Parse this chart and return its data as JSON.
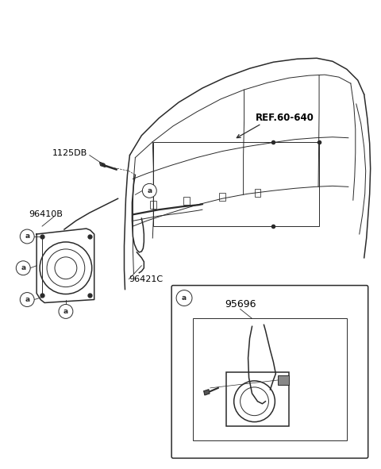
{
  "bg_color": "#ffffff",
  "line_color": "#2a2a2a",
  "label_color": "#000000",
  "parts": {
    "ref_label": "REF.60-640",
    "part1": "1125DB",
    "part2": "96410B",
    "part3": "96421C",
    "part4": "95696",
    "circle_label": "a"
  },
  "fig_width": 4.8,
  "fig_height": 5.91,
  "dpi": 100
}
